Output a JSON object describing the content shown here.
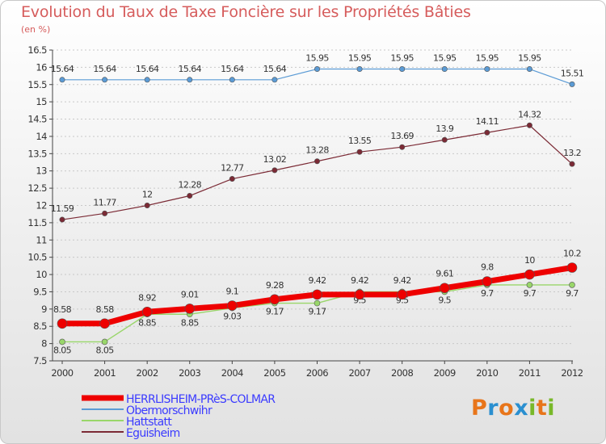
{
  "title": "Evolution du Taux de Taxe Foncière sur les Propriétés Bâties",
  "unit_label": "(en %)",
  "brand": {
    "text": "Proxiti",
    "letters": [
      {
        "ch": "P",
        "color": "#e8751a"
      },
      {
        "ch": "r",
        "color": "#2a8fd0"
      },
      {
        "ch": "o",
        "color": "#e8751a"
      },
      {
        "ch": "x",
        "color": "#2a8fd0"
      },
      {
        "ch": "i",
        "color": "#78b829"
      },
      {
        "ch": "t",
        "color": "#e8751a"
      },
      {
        "ch": "i",
        "color": "#78b829"
      }
    ]
  },
  "chart_data": {
    "type": "line",
    "x": [
      "2000",
      "2001",
      "2002",
      "2003",
      "2004",
      "2005",
      "2006",
      "2007",
      "2008",
      "2009",
      "2010",
      "2011",
      "2012"
    ],
    "ylim": [
      7.5,
      16.5
    ],
    "yticks": [
      "7.5",
      "8",
      "8.5",
      "9",
      "9.5",
      "10",
      "10.5",
      "11",
      "11.5",
      "12",
      "12.5",
      "13",
      "13.5",
      "14",
      "14.5",
      "15",
      "15.5",
      "16",
      "16.5"
    ],
    "grid": "horizontal dashed",
    "legend_position": "bottom-left",
    "series": [
      {
        "name": "Obermorschwihr",
        "color": "#5b9bd5",
        "values": [
          15.64,
          15.64,
          15.64,
          15.64,
          15.64,
          15.64,
          15.95,
          15.95,
          15.95,
          15.95,
          15.95,
          15.95,
          15.51
        ],
        "labels": [
          "15.64",
          "15.64",
          "15.64",
          "15.64",
          "15.64",
          "15.64",
          "15.95",
          "15.95",
          "15.95",
          "15.95",
          "15.95",
          "15.95",
          "15.51"
        ]
      },
      {
        "name": "Eguisheim",
        "color": "#7b2a35",
        "values": [
          11.59,
          11.77,
          12,
          12.28,
          12.77,
          13.02,
          13.28,
          13.55,
          13.69,
          13.9,
          14.11,
          14.32,
          13.2
        ],
        "labels": [
          "11.59",
          "11.77",
          "12",
          "12.28",
          "12.77",
          "13.02",
          "13.28",
          "13.55",
          "13.69",
          "13.9",
          "14.11",
          "14.32",
          "13.2"
        ]
      },
      {
        "name": "Hattstatt",
        "color": "#99d66a",
        "values": [
          8.05,
          8.05,
          8.85,
          8.85,
          9.03,
          9.17,
          9.17,
          9.5,
          9.5,
          9.5,
          9.7,
          9.7,
          9.7
        ],
        "labels": [
          "8.05",
          "8.05",
          "8.85",
          "8.85",
          "9.03",
          "9.17",
          "9.17",
          "9.5",
          "9.5",
          "9.5",
          "9.7",
          "9.7",
          "9.7"
        ]
      },
      {
        "name": "HERRLISHEIM-PRèS-COLMAR",
        "color": "#ee0000",
        "values": [
          8.58,
          8.58,
          8.92,
          9.01,
          9.1,
          9.28,
          9.42,
          9.42,
          9.42,
          9.61,
          9.8,
          10,
          10.2
        ],
        "labels": [
          "8.58",
          "8.58",
          "8.92",
          "9.01",
          "9.1",
          "9.28",
          "9.42",
          "9.42",
          "9.42",
          "9.61",
          "9.8",
          "10",
          "10.2"
        ]
      }
    ],
    "legend": [
      {
        "name": "HERRLISHEIM-PRèS-COLMAR",
        "color": "#ee0000"
      },
      {
        "name": "Obermorschwihr",
        "color": "#5b9bd5"
      },
      {
        "name": "Hattstatt",
        "color": "#99d66a"
      },
      {
        "name": "Eguisheim",
        "color": "#7b2a35"
      }
    ]
  }
}
